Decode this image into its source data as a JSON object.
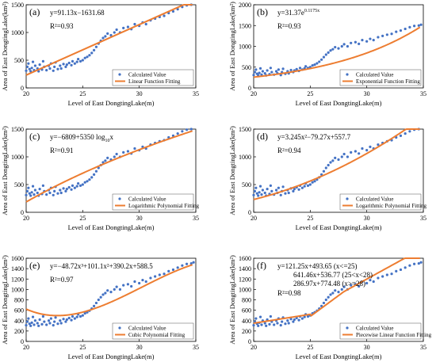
{
  "figure": {
    "common_xlabel": "Level of East DongtingLake(m)",
    "common_ylabel": "Area of East DongtingLake(km²)"
  },
  "scatter_points": [
    [
      20.0,
      310
    ],
    [
      20.1,
      380
    ],
    [
      20.2,
      440
    ],
    [
      20.3,
      340
    ],
    [
      20.4,
      300
    ],
    [
      20.5,
      360
    ],
    [
      20.6,
      470
    ],
    [
      20.7,
      320
    ],
    [
      20.8,
      400
    ],
    [
      21.0,
      350
    ],
    [
      21.1,
      300
    ],
    [
      21.2,
      420
    ],
    [
      21.4,
      330
    ],
    [
      21.5,
      480
    ],
    [
      21.6,
      380
    ],
    [
      21.8,
      320
    ],
    [
      22.0,
      400
    ],
    [
      22.1,
      350
    ],
    [
      22.2,
      440
    ],
    [
      22.4,
      310
    ],
    [
      22.5,
      380
    ],
    [
      22.6,
      460
    ],
    [
      22.8,
      340
    ],
    [
      23.0,
      400
    ],
    [
      23.1,
      350
    ],
    [
      23.3,
      430
    ],
    [
      23.5,
      380
    ],
    [
      23.6,
      420
    ],
    [
      23.8,
      450
    ],
    [
      24.0,
      410
    ],
    [
      24.1,
      480
    ],
    [
      24.3,
      440
    ],
    [
      24.5,
      470
    ],
    [
      24.6,
      520
    ],
    [
      24.8,
      480
    ],
    [
      25.0,
      500
    ],
    [
      25.2,
      540
    ],
    [
      25.4,
      560
    ],
    [
      25.6,
      590
    ],
    [
      25.8,
      630
    ],
    [
      26.0,
      680
    ],
    [
      26.2,
      740
    ],
    [
      26.4,
      800
    ],
    [
      26.6,
      850
    ],
    [
      26.8,
      900
    ],
    [
      27.0,
      930
    ],
    [
      27.2,
      980
    ],
    [
      27.5,
      950
    ],
    [
      27.8,
      1000
    ],
    [
      28.0,
      1050
    ],
    [
      28.3,
      1000
    ],
    [
      28.6,
      1080
    ],
    [
      29.0,
      1100
    ],
    [
      29.3,
      1060
    ],
    [
      29.6,
      1150
    ],
    [
      30.0,
      1120
    ],
    [
      30.3,
      1180
    ],
    [
      30.6,
      1150
    ],
    [
      31.0,
      1220
    ],
    [
      31.4,
      1250
    ],
    [
      31.8,
      1280
    ],
    [
      32.2,
      1300
    ],
    [
      32.6,
      1350
    ],
    [
      33.0,
      1380
    ],
    [
      33.4,
      1420
    ],
    [
      33.8,
      1460
    ],
    [
      34.2,
      1490
    ],
    [
      34.6,
      1500
    ],
    [
      34.8,
      1520
    ]
  ],
  "chart_data": [
    {
      "type": "scatter",
      "panel": "(a)",
      "equation": "y=91.13x−1631.68",
      "r2": "R²=0.93",
      "xlabel": "Level of East DongtingLake(m)",
      "ylabel": "Area of East DongtingLake(km²)",
      "xlim": [
        20,
        35
      ],
      "ylim": [
        0,
        1500
      ],
      "xticks": [
        20,
        25,
        30,
        35
      ],
      "yticks": [
        0,
        500,
        1000,
        1500
      ],
      "series": [
        {
          "name": "Calculated Value",
          "kind": "points",
          "color": "#4472c4"
        },
        {
          "name": "Linear Function Fitting",
          "kind": "fit",
          "fit": "linear",
          "color": "#ed7d31"
        }
      ],
      "legend": "bottom-right"
    },
    {
      "type": "scatter",
      "panel": "(b)",
      "equation": "y=31.37e",
      "equation_exp": "0.1175x",
      "r2": "R²=0.93",
      "xlabel": "Level of East DongtingLake(m)",
      "ylabel": "Area of East DongtingLake(km²)",
      "xlim": [
        20,
        35
      ],
      "ylim": [
        0,
        2000
      ],
      "xticks": [
        20,
        25,
        30,
        35
      ],
      "yticks": [
        0,
        500,
        1000,
        1500,
        2000
      ],
      "series": [
        {
          "name": "Calculated Value",
          "kind": "points",
          "color": "#4472c4"
        },
        {
          "name": "Exponential Function Fitting",
          "kind": "fit",
          "fit": "exp",
          "color": "#ed7d31"
        }
      ],
      "legend": "bottom-right"
    },
    {
      "type": "scatter",
      "panel": "(c)",
      "equation": "y=−6809+5350 log",
      "equation_sub": "10",
      "equation_tail": "x",
      "r2": "R²=0.91",
      "xlabel": "Level of East DongtingLake(m)",
      "ylabel": "Area of East DongtingLake(km²)",
      "xlim": [
        20,
        35
      ],
      "ylim": [
        0,
        1500
      ],
      "xticks": [
        20,
        25,
        30,
        35
      ],
      "yticks": [
        0,
        500,
        1000,
        1500
      ],
      "series": [
        {
          "name": "Calculated Value",
          "kind": "points",
          "color": "#4472c4"
        },
        {
          "name": "Logarithmic Polynomial Fitting",
          "kind": "fit",
          "fit": "log",
          "color": "#ed7d31"
        }
      ],
      "legend": "bottom-right"
    },
    {
      "type": "scatter",
      "panel": "(d)",
      "equation": "y=3.245x²−79.27x+557.7",
      "r2": "R²=0.94",
      "xlabel": "Level of East DongtingLake(m)",
      "ylabel": "Area of East DongtingLake(km²)",
      "xlim": [
        20,
        35
      ],
      "ylim": [
        0,
        1500
      ],
      "xticks": [
        20,
        25,
        30,
        35
      ],
      "yticks": [
        0,
        500,
        1000,
        1500
      ],
      "series": [
        {
          "name": "Calculated Value",
          "kind": "points",
          "color": "#4472c4"
        },
        {
          "name": "Logarithmic Polynomial Fitting",
          "kind": "fit",
          "fit": "quad",
          "color": "#ed7d31"
        }
      ],
      "legend": "bottom-right"
    },
    {
      "type": "scatter",
      "panel": "(e)",
      "equation": "y=−48.72x³+101.1x²+390.2x+588.5",
      "r2": "R²=0.97",
      "xlabel": "Level of East DongtingLake(m)",
      "ylabel": "Area of East DongtingLake(km²)",
      "xlim": [
        20,
        35
      ],
      "ylim": [
        0,
        1600
      ],
      "xticks": [
        20,
        25,
        30,
        35
      ],
      "yticks": [
        0,
        200,
        400,
        600,
        800,
        1000,
        1200,
        1400,
        1600
      ],
      "series": [
        {
          "name": "Calculated Value",
          "kind": "points",
          "color": "#4472c4"
        },
        {
          "name": "Cubic Polynomial Fitting",
          "kind": "fit",
          "fit": "cubic",
          "color": "#ed7d31"
        }
      ],
      "legend": "bottom-right"
    },
    {
      "type": "scatter",
      "panel": "(f)",
      "equation": "y=121.25x+493.65 (x<=25)",
      "equation_lines": [
        "641.46x+536.77 (25<x<28)",
        "286.97x+774.48 (x>=28)"
      ],
      "r2": "R²=0.98",
      "xlabel": "Level of East DongtingLake(m)",
      "ylabel": "Area of East DongtingLake(km²)",
      "xlim": [
        20,
        35
      ],
      "ylim": [
        0,
        1600
      ],
      "xticks": [
        20,
        25,
        30,
        35
      ],
      "yticks": [
        0,
        200,
        400,
        600,
        800,
        1000,
        1200,
        1400,
        1600
      ],
      "series": [
        {
          "name": "Calculated Value",
          "kind": "points",
          "color": "#4472c4"
        },
        {
          "name": "Piecewise Linear Function Fitting",
          "kind": "fit",
          "fit": "piecewise",
          "color": "#ed7d31"
        }
      ],
      "legend": "bottom-right"
    }
  ]
}
